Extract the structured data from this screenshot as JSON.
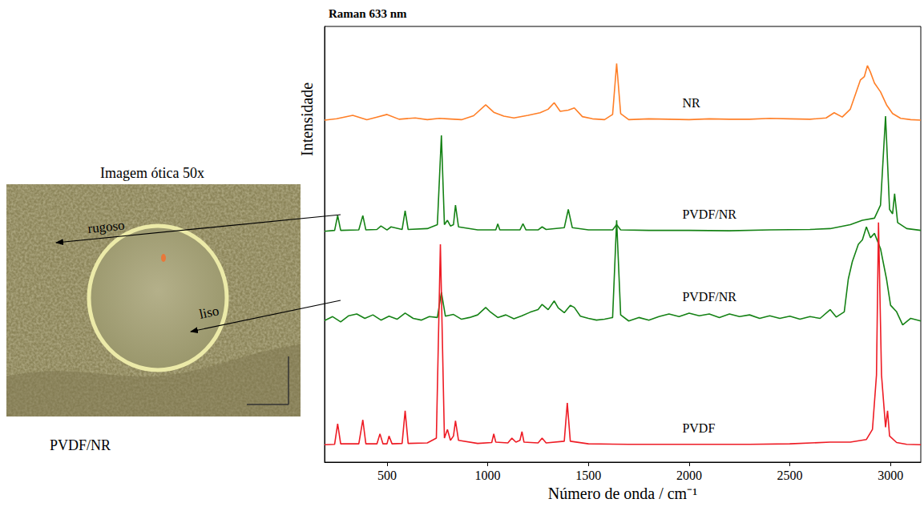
{
  "chart_data": {
    "type": "line",
    "title": "Raman 633 nm",
    "x_label": "Número de onda / cm⁻¹",
    "y_label": "Intensidade",
    "xlim": [
      190,
      3150
    ],
    "xticks": [
      500,
      1000,
      1500,
      2000,
      2500,
      3000
    ],
    "ylim": [
      0,
      100
    ],
    "tick_labels": "x",
    "grid": false,
    "series": [
      {
        "name": "NR",
        "color": "#ff7f27",
        "x": [
          190,
          250,
          330,
          400,
          450,
          500,
          560,
          640,
          700,
          760,
          800,
          870,
          930,
          990,
          1030,
          1080,
          1130,
          1200,
          1260,
          1300,
          1330,
          1360,
          1400,
          1430,
          1470,
          1520,
          1580,
          1620,
          1640,
          1660,
          1700,
          1800,
          1900,
          2000,
          2100,
          2200,
          2300,
          2400,
          2500,
          2600,
          2680,
          2720,
          2760,
          2800,
          2830,
          2850,
          2870,
          2885,
          2900,
          2920,
          2950,
          2980,
          3010,
          3050,
          3100,
          3150
        ],
        "values": [
          78.5,
          78.8,
          79.6,
          78.6,
          79.2,
          79.8,
          78.7,
          79.0,
          78.6,
          78.9,
          78.8,
          78.6,
          79.5,
          82.0,
          80.3,
          79.4,
          79.0,
          79.6,
          80.2,
          81.0,
          82.5,
          80.5,
          80.8,
          81.3,
          79.3,
          78.8,
          78.6,
          79.8,
          91.5,
          80.0,
          78.6,
          78.8,
          78.7,
          78.6,
          78.8,
          78.7,
          78.7,
          78.9,
          78.8,
          78.7,
          79.0,
          80.2,
          79.2,
          81.0,
          85.0,
          87.7,
          88.5,
          91.0,
          89.5,
          87.0,
          85.0,
          82.0,
          80.0,
          78.9,
          78.6,
          78.5
        ]
      },
      {
        "name": "PVDF/NR",
        "color": "#158215",
        "x": [
          190,
          240,
          255,
          270,
          360,
          380,
          395,
          450,
          470,
          500,
          520,
          575,
          590,
          605,
          700,
          750,
          770,
          785,
          800,
          815,
          830,
          840,
          855,
          950,
          1040,
          1050,
          1060,
          1160,
          1175,
          1190,
          1250,
          1270,
          1290,
          1380,
          1400,
          1420,
          1500,
          1620,
          1640,
          1660,
          1800,
          2000,
          2200,
          2400,
          2600,
          2700,
          2800,
          2860,
          2920,
          2950,
          2975,
          2995,
          3010,
          3020,
          3035,
          3080,
          3150
        ],
        "values": [
          53,
          53.2,
          56.6,
          53.2,
          53.3,
          56.6,
          53.3,
          53.4,
          54.2,
          53.3,
          54.0,
          53.4,
          57.7,
          53.4,
          53.6,
          54.5,
          75.0,
          54.5,
          55.5,
          54.2,
          54.5,
          59.0,
          54.0,
          53.3,
          53.3,
          54.7,
          53.3,
          53.3,
          54.7,
          53.3,
          53.3,
          54.0,
          53.4,
          53.8,
          58.0,
          53.8,
          53.3,
          53.3,
          54.5,
          53.3,
          53.2,
          53.2,
          53.1,
          53.3,
          53.4,
          53.6,
          54.5,
          55.5,
          56.0,
          59.0,
          79.4,
          58.0,
          57.0,
          61.6,
          55.0,
          53.6,
          53.2
        ]
      },
      {
        "name": "PVDF/NR",
        "color": "#158215",
        "x": [
          190,
          230,
          270,
          310,
          350,
          390,
          430,
          470,
          510,
          550,
          590,
          630,
          670,
          710,
          750,
          770,
          790,
          830,
          870,
          910,
          950,
          990,
          1010,
          1050,
          1090,
          1130,
          1170,
          1210,
          1250,
          1270,
          1300,
          1330,
          1350,
          1380,
          1410,
          1430,
          1460,
          1500,
          1540,
          1580,
          1620,
          1640,
          1660,
          1700,
          1750,
          1800,
          1850,
          1900,
          1950,
          2000,
          2050,
          2100,
          2150,
          2200,
          2250,
          2300,
          2350,
          2400,
          2450,
          2500,
          2550,
          2600,
          2650,
          2700,
          2730,
          2770,
          2790,
          2810,
          2840,
          2860,
          2880,
          2900,
          2920,
          2950,
          2980,
          3000,
          3030,
          3060,
          3100,
          3150
        ],
        "values": [
          32.5,
          33.4,
          32.2,
          33.6,
          34.0,
          33.0,
          33.8,
          32.6,
          33.5,
          32.8,
          34.2,
          33.0,
          32.6,
          33.4,
          33.2,
          39.0,
          33.5,
          33.9,
          32.8,
          33.2,
          33.8,
          35.5,
          34.6,
          33.2,
          33.8,
          32.9,
          33.6,
          34.4,
          35.0,
          36.2,
          35.0,
          37.0,
          35.4,
          34.3,
          36.0,
          35.5,
          33.5,
          33.0,
          32.6,
          32.8,
          33.2,
          55.5,
          33.8,
          32.4,
          33.2,
          32.6,
          33.4,
          34.0,
          33.4,
          34.2,
          33.6,
          34.0,
          33.2,
          34.0,
          33.4,
          33.8,
          33.0,
          33.6,
          33.0,
          33.5,
          32.8,
          33.4,
          33.0,
          35.0,
          33.3,
          34.5,
          42.0,
          46.0,
          50.0,
          51.0,
          54.0,
          51.5,
          52.5,
          49.0,
          42.0,
          36.0,
          34.5,
          31.5,
          33.0,
          32.4
        ]
      },
      {
        "name": "PVDF",
        "color": "#ee1c25",
        "x": [
          190,
          240,
          255,
          270,
          360,
          380,
          395,
          450,
          465,
          480,
          500,
          510,
          525,
          575,
          590,
          605,
          700,
          745,
          765,
          785,
          800,
          815,
          830,
          840,
          855,
          950,
          1020,
          1030,
          1040,
          1100,
          1120,
          1140,
          1160,
          1170,
          1180,
          1250,
          1270,
          1290,
          1380,
          1395,
          1410,
          1500,
          1700,
          1900,
          2100,
          2300,
          2500,
          2700,
          2800,
          2880,
          2910,
          2930,
          2940,
          2955,
          2975,
          2985,
          2995,
          3030,
          3080,
          3150
        ],
        "values": [
          4.0,
          4.1,
          8.8,
          4.2,
          4.2,
          9.7,
          4.2,
          4.2,
          6.5,
          4.2,
          4.2,
          6.0,
          4.2,
          4.3,
          11.8,
          4.3,
          4.4,
          5.5,
          50.0,
          5.5,
          7.5,
          5.0,
          6.0,
          9.5,
          5.0,
          4.3,
          4.5,
          6.5,
          4.6,
          4.4,
          5.5,
          4.6,
          5.0,
          7.0,
          4.6,
          4.4,
          5.5,
          4.4,
          4.8,
          13.6,
          4.8,
          4.2,
          4.1,
          4.1,
          4.1,
          4.1,
          4.2,
          4.6,
          4.6,
          5.2,
          7.5,
          20.0,
          55.0,
          20.0,
          8.0,
          11.8,
          6.0,
          4.5,
          4.1,
          4.0
        ]
      }
    ]
  },
  "image_panel": {
    "title": "Imagem ótica 50x",
    "caption": "PVDF/NR",
    "labels": [
      "rugoso",
      "liso"
    ]
  }
}
